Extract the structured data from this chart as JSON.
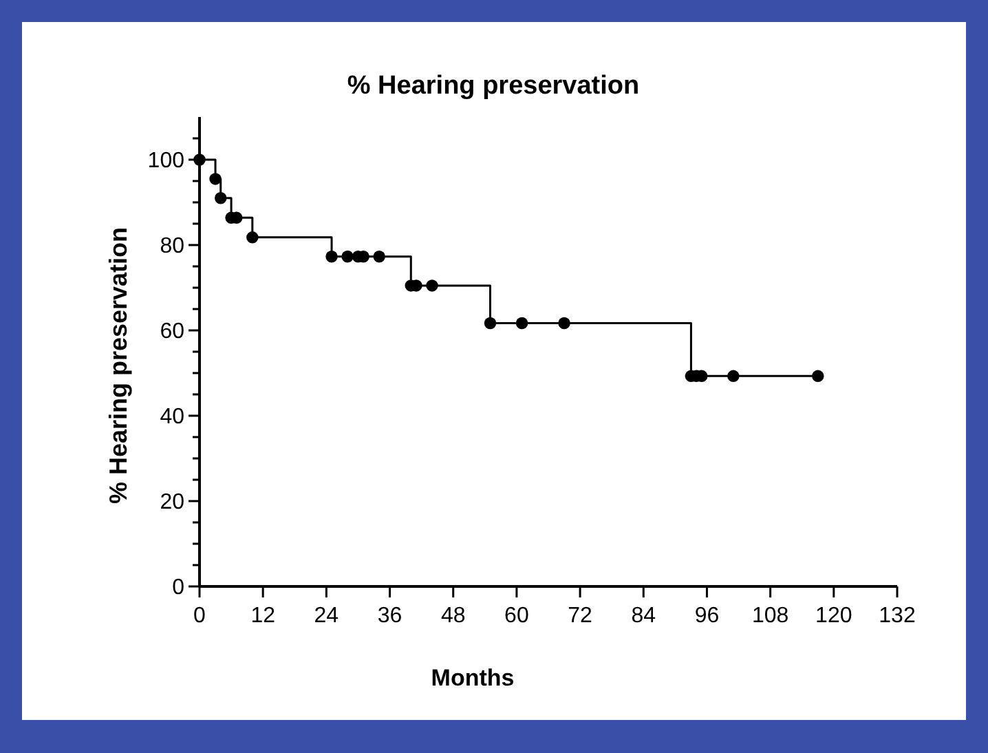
{
  "chart_data": {
    "type": "step",
    "title": "% Hearing preservation",
    "xlabel": "Months",
    "ylabel": "% Hearing preservation",
    "x": [
      0,
      3,
      4,
      6,
      7,
      10,
      25,
      28,
      30,
      31,
      34,
      40,
      41,
      44,
      55,
      61,
      69,
      93,
      94,
      95,
      101,
      117
    ],
    "series": [
      {
        "color": "#000000",
        "values": [
          100,
          95.5,
          91,
          86.4,
          86.4,
          81.8,
          77.3,
          77.3,
          77.3,
          77.3,
          77.3,
          70.5,
          70.5,
          70.5,
          61.7,
          61.7,
          61.7,
          49.3,
          49.3,
          49.3,
          49.3,
          49.3
        ]
      }
    ],
    "xlim": [
      0,
      132
    ],
    "xticks": [
      0,
      12,
      24,
      36,
      48,
      60,
      72,
      84,
      96,
      108,
      120,
      132
    ],
    "ylim": [
      0,
      110
    ],
    "yticks": [
      0,
      {
        "value": 5,
        "label": null
      },
      {
        "value": 10,
        "label": null
      },
      {
        "value": 15,
        "label": null
      },
      20,
      {
        "value": 25,
        "label": null
      },
      {
        "value": 30,
        "label": null
      },
      {
        "value": 35,
        "label": null
      },
      40,
      {
        "value": 45,
        "label": null
      },
      {
        "value": 50,
        "label": null
      },
      {
        "value": 55,
        "label": null
      },
      60,
      {
        "value": 65,
        "label": null
      },
      {
        "value": 70,
        "label": null
      },
      {
        "value": 75,
        "label": null
      },
      80,
      {
        "value": 85,
        "label": null
      },
      {
        "value": 90,
        "label": null
      },
      {
        "value": 95,
        "label": null
      },
      100,
      {
        "value": 105,
        "label": null
      }
    ],
    "marker": "circle",
    "line_style": "solid",
    "grid": false
  }
}
